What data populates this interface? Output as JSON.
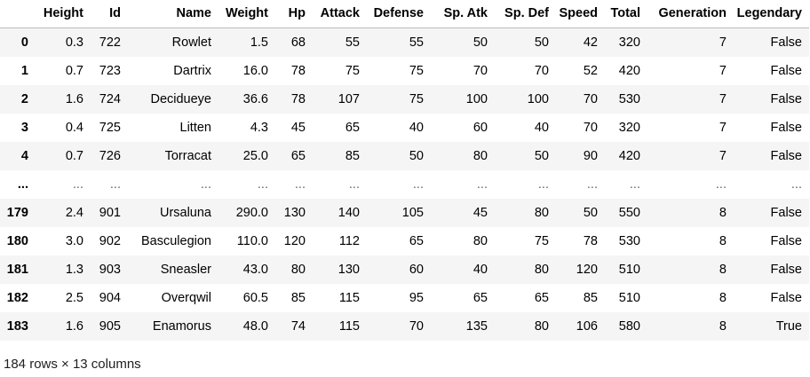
{
  "table": {
    "columns": [
      "Height",
      "Id",
      "Name",
      "Weight",
      "Hp",
      "Attack",
      "Defense",
      "Sp. Atk",
      "Sp. Def",
      "Speed",
      "Total",
      "Generation",
      "Legendary"
    ],
    "rows": [
      {
        "index": "0",
        "cells": [
          "0.3",
          "722",
          "Rowlet",
          "1.5",
          "68",
          "55",
          "55",
          "50",
          "50",
          "42",
          "320",
          "7",
          "False"
        ]
      },
      {
        "index": "1",
        "cells": [
          "0.7",
          "723",
          "Dartrix",
          "16.0",
          "78",
          "75",
          "75",
          "70",
          "70",
          "52",
          "420",
          "7",
          "False"
        ]
      },
      {
        "index": "2",
        "cells": [
          "1.6",
          "724",
          "Decidueye",
          "36.6",
          "78",
          "107",
          "75",
          "100",
          "100",
          "70",
          "530",
          "7",
          "False"
        ]
      },
      {
        "index": "3",
        "cells": [
          "0.4",
          "725",
          "Litten",
          "4.3",
          "45",
          "65",
          "40",
          "60",
          "40",
          "70",
          "320",
          "7",
          "False"
        ]
      },
      {
        "index": "4",
        "cells": [
          "0.7",
          "726",
          "Torracat",
          "25.0",
          "65",
          "85",
          "50",
          "80",
          "50",
          "90",
          "420",
          "7",
          "False"
        ]
      },
      {
        "index": "...",
        "cells": [
          "...",
          "...",
          "...",
          "...",
          "...",
          "...",
          "...",
          "...",
          "...",
          "...",
          "...",
          "...",
          "..."
        ]
      },
      {
        "index": "179",
        "cells": [
          "2.4",
          "901",
          "Ursaluna",
          "290.0",
          "130",
          "140",
          "105",
          "45",
          "80",
          "50",
          "550",
          "8",
          "False"
        ]
      },
      {
        "index": "180",
        "cells": [
          "3.0",
          "902",
          "Basculegion",
          "110.0",
          "120",
          "112",
          "65",
          "80",
          "75",
          "78",
          "530",
          "8",
          "False"
        ]
      },
      {
        "index": "181",
        "cells": [
          "1.3",
          "903",
          "Sneasler",
          "43.0",
          "80",
          "130",
          "60",
          "40",
          "80",
          "120",
          "510",
          "8",
          "False"
        ]
      },
      {
        "index": "182",
        "cells": [
          "2.5",
          "904",
          "Overqwil",
          "60.5",
          "85",
          "115",
          "95",
          "65",
          "65",
          "85",
          "510",
          "8",
          "False"
        ]
      },
      {
        "index": "183",
        "cells": [
          "1.6",
          "905",
          "Enamorus",
          "48.0",
          "74",
          "115",
          "70",
          "135",
          "80",
          "106",
          "580",
          "8",
          "True"
        ]
      }
    ]
  },
  "footer": {
    "shape": "184 rows × 13 columns"
  }
}
